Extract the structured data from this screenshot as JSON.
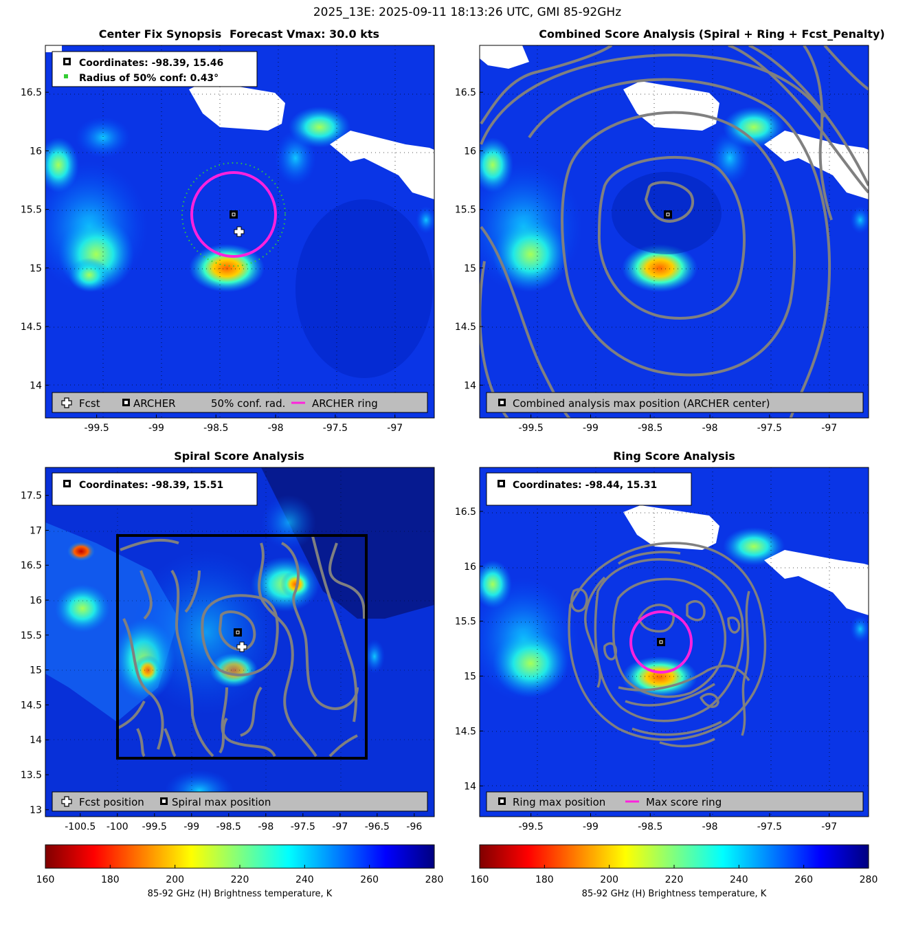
{
  "figure": {
    "suptitle": "2025_13E: 2025-09-11 18:13:26 UTC, GMI 85-92GHz"
  },
  "colors": {
    "archer_ring": "#ff22dd",
    "contour": "#808080",
    "conf_dots": "#33cc33",
    "legend_bg": "#bdbdbd"
  },
  "panels": {
    "synopsis": {
      "title_left": "Center Fix Synopsis",
      "title_right": "Forecast Vmax: 30.0 kts",
      "info_coords": "Coordinates: -98.39, 15.46",
      "info_radius": "Radius of 50% conf: 0.43°",
      "legend": [
        "Fcst",
        "ARCHER",
        "50% conf. rad.",
        "ARCHER ring"
      ]
    },
    "combined": {
      "title": "Combined Score Analysis (Spiral + Ring + Fcst_Penalty)",
      "legend": [
        "Combined analysis max position (ARCHER center)"
      ]
    },
    "spiral": {
      "title": "Spiral Score Analysis",
      "info_coords": "Coordinates: -98.39, 15.51",
      "legend": [
        "Fcst position",
        "Spiral max position"
      ]
    },
    "ring": {
      "title": "Ring Score Analysis",
      "info_coords": "Coordinates: -98.44, 15.31",
      "legend": [
        "Ring max position",
        "Max score ring"
      ]
    }
  },
  "chart_data": [
    {
      "type": "heatmap",
      "panel": "Center Fix Synopsis",
      "xlabel": "",
      "ylabel": "",
      "xlim": [
        -99.93,
        -96.67
      ],
      "ylim": [
        13.72,
        16.9
      ],
      "xticks": [
        -99.5,
        -99,
        -98.5,
        -98,
        -97.5,
        -97
      ],
      "yticks": [
        14,
        14.5,
        15,
        15.5,
        16,
        16.5
      ],
      "archer_center": [
        -98.39,
        15.46
      ],
      "fcst_position": [
        -98.35,
        15.31
      ],
      "conf_radius_deg": 0.43,
      "archer_ring_radius_deg": 0.35
    },
    {
      "type": "heatmap",
      "panel": "Combined Score Analysis",
      "xlim": [
        -99.93,
        -96.67
      ],
      "ylim": [
        13.72,
        16.9
      ],
      "xticks": [
        -99.5,
        -99,
        -98.5,
        -98,
        -97.5,
        -97
      ],
      "yticks": [
        14,
        14.5,
        15,
        15.5,
        16,
        16.5
      ],
      "max_position": [
        -98.39,
        15.46
      ]
    },
    {
      "type": "heatmap",
      "panel": "Spiral Score Analysis",
      "xlim": [
        -100.97,
        -95.73
      ],
      "ylim": [
        12.9,
        17.9
      ],
      "xticks": [
        -100.5,
        -100,
        -99.5,
        -99,
        -98.5,
        -98,
        -97.5,
        -97,
        -96.5,
        -96
      ],
      "yticks": [
        13,
        13.5,
        14,
        14.5,
        15,
        15.5,
        16,
        16.5,
        17,
        17.5
      ],
      "search_box": {
        "x": [
          -100.0,
          -96.65
        ],
        "y": [
          13.7,
          16.92
        ]
      },
      "max_position": [
        -98.39,
        15.51
      ],
      "fcst_position": [
        -98.35,
        15.31
      ]
    },
    {
      "type": "heatmap",
      "panel": "Ring Score Analysis",
      "xlim": [
        -99.93,
        -96.67
      ],
      "ylim": [
        13.72,
        16.9
      ],
      "xticks": [
        -99.5,
        -99,
        -98.5,
        -98,
        -97.5,
        -97
      ],
      "yticks": [
        14,
        14.5,
        15,
        15.5,
        16,
        16.5
      ],
      "max_position": [
        -98.44,
        15.31
      ],
      "ring_radius_deg": 0.26
    },
    {
      "type": "colorbar",
      "label": "85-92 GHz (H) Brightness temperature, K",
      "range": [
        160,
        280
      ],
      "ticks": [
        160,
        180,
        200,
        220,
        240,
        260,
        280
      ]
    }
  ]
}
